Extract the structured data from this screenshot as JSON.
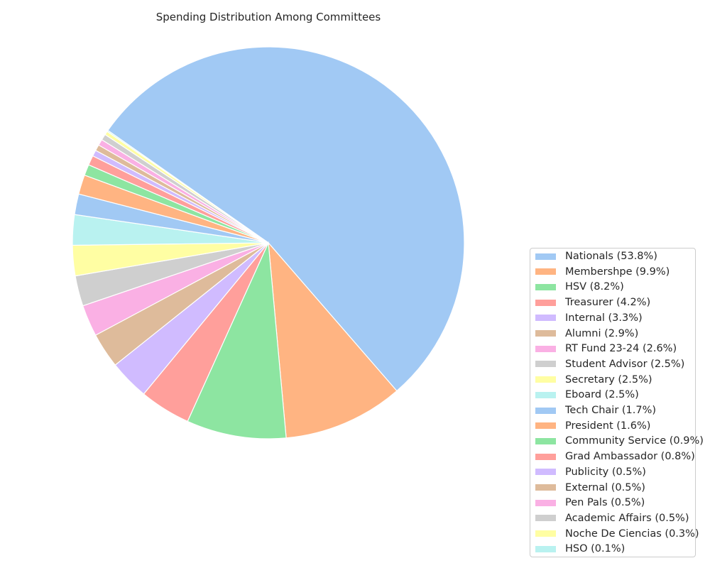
{
  "chart_data": {
    "type": "pie",
    "title": "Spending Distribution Among Committees",
    "start_angle_deg": 145,
    "direction": "clockwise",
    "legend_position": "lower-right",
    "slices": [
      {
        "label": "Nationals (53.8%)",
        "value": 53.8,
        "color": "#a1c9f4"
      },
      {
        "label": "Membershpe (9.9%)",
        "value": 9.9,
        "color": "#ffb482"
      },
      {
        "label": "HSV (8.2%)",
        "value": 8.2,
        "color": "#8de5a1"
      },
      {
        "label": "Treasurer (4.2%)",
        "value": 4.2,
        "color": "#ff9f9b"
      },
      {
        "label": "Internal (3.3%)",
        "value": 3.3,
        "color": "#d0bbff"
      },
      {
        "label": "Alumni (2.9%)",
        "value": 2.9,
        "color": "#debb9b"
      },
      {
        "label": "RT Fund 23-24 (2.6%)",
        "value": 2.6,
        "color": "#fab0e4"
      },
      {
        "label": "Student Advisor (2.5%)",
        "value": 2.5,
        "color": "#cfcfcf"
      },
      {
        "label": "Secretary (2.5%)",
        "value": 2.5,
        "color": "#fffea3"
      },
      {
        "label": "Eboard (2.5%)",
        "value": 2.5,
        "color": "#b9f2f0"
      },
      {
        "label": "Tech Chair (1.7%)",
        "value": 1.7,
        "color": "#a1c9f4"
      },
      {
        "label": "President (1.6%)",
        "value": 1.6,
        "color": "#ffb482"
      },
      {
        "label": "Community Service (0.9%)",
        "value": 0.9,
        "color": "#8de5a1"
      },
      {
        "label": "Grad Ambassador (0.8%)",
        "value": 0.8,
        "color": "#ff9f9b"
      },
      {
        "label": "Publicity (0.5%)",
        "value": 0.5,
        "color": "#d0bbff"
      },
      {
        "label": "External (0.5%)",
        "value": 0.5,
        "color": "#debb9b"
      },
      {
        "label": "Pen Pals (0.5%)",
        "value": 0.5,
        "color": "#fab0e4"
      },
      {
        "label": "Academic Affairs (0.5%)",
        "value": 0.5,
        "color": "#cfcfcf"
      },
      {
        "label": "Noche De Ciencias (0.3%)",
        "value": 0.3,
        "color": "#fffea3"
      },
      {
        "label": "HSO (0.1%)",
        "value": 0.1,
        "color": "#b9f2f0"
      }
    ]
  }
}
